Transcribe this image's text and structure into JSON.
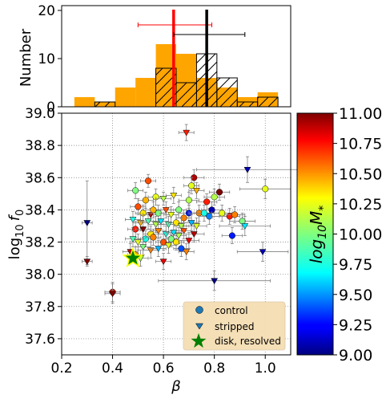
{
  "chart_data": [
    {
      "type": "histogram",
      "ylabel": "Number",
      "xlim": [
        0.2,
        1.1
      ],
      "ylim": [
        0,
        21
      ],
      "yticks": [
        0,
        10,
        20
      ],
      "series": [
        {
          "color": "#ffa500",
          "bins": [
            {
              "x0": 0.25,
              "x1": 0.33,
              "value": 2
            },
            {
              "x0": 0.33,
              "x1": 0.41,
              "value": 1
            },
            {
              "x0": 0.41,
              "x1": 0.49,
              "value": 4
            },
            {
              "x0": 0.49,
              "x1": 0.57,
              "value": 6
            },
            {
              "x0": 0.57,
              "x1": 0.65,
              "value": 13
            },
            {
              "x0": 0.65,
              "x1": 0.73,
              "value": 11
            },
            {
              "x0": 0.73,
              "x1": 0.81,
              "value": 6
            },
            {
              "x0": 0.81,
              "x1": 0.89,
              "value": 4
            },
            {
              "x0": 0.89,
              "x1": 0.97,
              "value": 2
            },
            {
              "x0": 0.97,
              "x1": 1.05,
              "value": 3
            }
          ]
        },
        {
          "color": "#000000",
          "hatch": true,
          "bins": [
            {
              "x0": 0.33,
              "x1": 0.41,
              "value": 1
            },
            {
              "x0": 0.57,
              "x1": 0.65,
              "value": 8
            },
            {
              "x0": 0.65,
              "x1": 0.73,
              "value": 5
            },
            {
              "x0": 0.73,
              "x1": 0.81,
              "value": 11
            },
            {
              "x0": 0.81,
              "x1": 0.89,
              "value": 6
            },
            {
              "x0": 0.89,
              "x1": 0.97,
              "value": 1
            },
            {
              "x0": 0.97,
              "x1": 1.05,
              "value": 2
            }
          ]
        }
      ],
      "markers": [
        {
          "color": "#ff0000",
          "x": 0.64,
          "xerr_low": 0.5,
          "xerr_high": 0.79,
          "y_err": 17
        },
        {
          "color": "#000000",
          "x": 0.77,
          "xerr_low": 0.64,
          "xerr_high": 0.92,
          "y_err": 15
        }
      ]
    },
    {
      "type": "scatter",
      "xlabel": "β",
      "ylabel_base": "log",
      "ylabel_sub": "10",
      "ylabel_var": "f",
      "ylabel_var_sub": "0",
      "xlim": [
        0.2,
        1.1
      ],
      "ylim": [
        37.5,
        39.0
      ],
      "xticks": [
        "0.2",
        "0.4",
        "0.6",
        "0.8",
        "1.0"
      ],
      "yticks": [
        "37.6",
        "37.8",
        "38.0",
        "38.2",
        "38.4",
        "38.6",
        "38.8",
        "39.0"
      ],
      "grid": true,
      "legend_position": "lower-right",
      "legend": [
        {
          "label": "control",
          "marker": "circle",
          "color": "#1f77b4"
        },
        {
          "label": "stripped",
          "marker": "triangle-down",
          "color": "#1f77b4"
        },
        {
          "label": "disk, resolved",
          "marker": "star",
          "color": "#008000"
        }
      ],
      "colorbar": {
        "label_base": "log",
        "label_sub": "10",
        "label_var": "M",
        "label_var_sub": "*",
        "range": [
          9.0,
          11.0
        ],
        "ticks": [
          "9.00",
          "9.25",
          "9.50",
          "9.75",
          "10.00",
          "10.25",
          "10.50",
          "10.75",
          "11.00"
        ]
      },
      "points": [
        {
          "x": 0.54,
          "y": 38.58,
          "c": 10.6,
          "m": "o",
          "ex": 0.03,
          "ey": 0.04
        },
        {
          "x": 0.72,
          "y": 38.6,
          "c": 10.9,
          "m": "o",
          "ex": 0.04,
          "ey": 0.05
        },
        {
          "x": 0.82,
          "y": 38.51,
          "c": 11.0,
          "m": "o",
          "ex": 0.04,
          "ey": 0.05
        },
        {
          "x": 1.0,
          "y": 38.53,
          "c": 10.2,
          "m": "o",
          "ex": 0.1,
          "ey": 0.06
        },
        {
          "x": 0.93,
          "y": 38.65,
          "c": 9.1,
          "m": "v",
          "ex": 0.2,
          "ey": 0.08
        },
        {
          "x": 0.69,
          "y": 38.88,
          "c": 10.7,
          "m": "v",
          "ex": 0.03,
          "ey": 0.05
        },
        {
          "x": 0.49,
          "y": 38.52,
          "c": 10.0,
          "m": "o",
          "ex": 0.03,
          "ey": 0.05
        },
        {
          "x": 0.53,
          "y": 38.46,
          "c": 10.4,
          "m": "o",
          "ex": 0.03,
          "ey": 0.05
        },
        {
          "x": 0.57,
          "y": 38.48,
          "c": 10.2,
          "m": "o",
          "ex": 0.03,
          "ey": 0.05
        },
        {
          "x": 0.6,
          "y": 38.47,
          "c": 10.1,
          "m": "v",
          "ex": 0.03,
          "ey": 0.04
        },
        {
          "x": 0.64,
          "y": 38.49,
          "c": 10.3,
          "m": "v",
          "ex": 0.03,
          "ey": 0.05
        },
        {
          "x": 0.7,
          "y": 38.46,
          "c": 10.1,
          "m": "o",
          "ex": 0.04,
          "ey": 0.05
        },
        {
          "x": 0.71,
          "y": 38.55,
          "c": 10.2,
          "m": "o",
          "ex": 0.03,
          "ey": 0.05
        },
        {
          "x": 0.73,
          "y": 38.52,
          "c": 10.4,
          "m": "v",
          "ex": 0.03,
          "ey": 0.05
        },
        {
          "x": 0.77,
          "y": 38.45,
          "c": 10.7,
          "m": "o",
          "ex": 0.04,
          "ey": 0.05
        },
        {
          "x": 0.8,
          "y": 38.48,
          "c": 10.1,
          "m": "o",
          "ex": 0.04,
          "ey": 0.05
        },
        {
          "x": 0.5,
          "y": 38.42,
          "c": 10.6,
          "m": "o",
          "ex": 0.03,
          "ey": 0.05
        },
        {
          "x": 0.52,
          "y": 38.38,
          "c": 10.3,
          "m": "o",
          "ex": 0.03,
          "ey": 0.05
        },
        {
          "x": 0.55,
          "y": 38.37,
          "c": 10.9,
          "m": "v",
          "ex": 0.03,
          "ey": 0.04
        },
        {
          "x": 0.56,
          "y": 38.4,
          "c": 10.4,
          "m": "o",
          "ex": 0.03,
          "ey": 0.05
        },
        {
          "x": 0.58,
          "y": 38.38,
          "c": 10.0,
          "m": "o",
          "ex": 0.03,
          "ey": 0.05
        },
        {
          "x": 0.61,
          "y": 38.4,
          "c": 10.6,
          "m": "v",
          "ex": 0.03,
          "ey": 0.05
        },
        {
          "x": 0.63,
          "y": 38.37,
          "c": 10.2,
          "m": "v",
          "ex": 0.03,
          "ey": 0.05
        },
        {
          "x": 0.66,
          "y": 38.4,
          "c": 10.0,
          "m": "o",
          "ex": 0.03,
          "ey": 0.05
        },
        {
          "x": 0.68,
          "y": 38.35,
          "c": 10.5,
          "m": "o",
          "ex": 0.03,
          "ey": 0.05
        },
        {
          "x": 0.7,
          "y": 38.38,
          "c": 9.3,
          "m": "o",
          "ex": 0.04,
          "ey": 0.05
        },
        {
          "x": 0.74,
          "y": 38.38,
          "c": 10.5,
          "m": "o",
          "ex": 0.04,
          "ey": 0.05
        },
        {
          "x": 0.76,
          "y": 38.38,
          "c": 9.8,
          "m": "o",
          "ex": 0.04,
          "ey": 0.05
        },
        {
          "x": 0.78,
          "y": 38.36,
          "c": 9.5,
          "m": "o",
          "ex": 0.04,
          "ey": 0.05
        },
        {
          "x": 0.79,
          "y": 38.4,
          "c": 9.1,
          "m": "o",
          "ex": 0.04,
          "ey": 0.05
        },
        {
          "x": 0.83,
          "y": 38.38,
          "c": 10.2,
          "m": "o",
          "ex": 0.04,
          "ey": 0.05
        },
        {
          "x": 0.86,
          "y": 38.36,
          "c": 10.7,
          "m": "o",
          "ex": 0.04,
          "ey": 0.05
        },
        {
          "x": 0.88,
          "y": 38.37,
          "c": 10.5,
          "m": "o",
          "ex": 0.04,
          "ey": 0.05
        },
        {
          "x": 0.91,
          "y": 38.33,
          "c": 10.0,
          "m": "o",
          "ex": 0.05,
          "ey": 0.05
        },
        {
          "x": 0.48,
          "y": 38.34,
          "c": 9.8,
          "m": "v",
          "ex": 0.03,
          "ey": 0.05
        },
        {
          "x": 0.51,
          "y": 38.32,
          "c": 10.4,
          "m": "v",
          "ex": 0.03,
          "ey": 0.05
        },
        {
          "x": 0.54,
          "y": 38.33,
          "c": 9.9,
          "m": "v",
          "ex": 0.03,
          "ey": 0.05
        },
        {
          "x": 0.57,
          "y": 38.31,
          "c": 10.1,
          "m": "v",
          "ex": 0.03,
          "ey": 0.05
        },
        {
          "x": 0.59,
          "y": 38.33,
          "c": 9.7,
          "m": "v",
          "ex": 0.03,
          "ey": 0.05
        },
        {
          "x": 0.62,
          "y": 38.31,
          "c": 9.9,
          "m": "v",
          "ex": 0.03,
          "ey": 0.05
        },
        {
          "x": 0.65,
          "y": 38.32,
          "c": 10.3,
          "m": "o",
          "ex": 0.03,
          "ey": 0.05
        },
        {
          "x": 0.67,
          "y": 38.3,
          "c": 10.1,
          "m": "v",
          "ex": 0.03,
          "ey": 0.05
        },
        {
          "x": 0.71,
          "y": 38.32,
          "c": 9.6,
          "m": "v",
          "ex": 0.03,
          "ey": 0.05
        },
        {
          "x": 0.73,
          "y": 38.3,
          "c": 10.2,
          "m": "v",
          "ex": 0.04,
          "ey": 0.05
        },
        {
          "x": 0.92,
          "y": 38.3,
          "c": 9.7,
          "m": "v",
          "ex": 0.1,
          "ey": 0.06
        },
        {
          "x": 0.49,
          "y": 38.28,
          "c": 10.7,
          "m": "o",
          "ex": 0.03,
          "ey": 0.05
        },
        {
          "x": 0.52,
          "y": 38.28,
          "c": 11.0,
          "m": "v",
          "ex": 0.03,
          "ey": 0.05
        },
        {
          "x": 0.55,
          "y": 38.25,
          "c": 10.3,
          "m": "o",
          "ex": 0.03,
          "ey": 0.05
        },
        {
          "x": 0.58,
          "y": 38.27,
          "c": 10.5,
          "m": "v",
          "ex": 0.03,
          "ey": 0.05
        },
        {
          "x": 0.61,
          "y": 38.25,
          "c": 9.8,
          "m": "v",
          "ex": 0.03,
          "ey": 0.05
        },
        {
          "x": 0.64,
          "y": 38.26,
          "c": 9.7,
          "m": "v",
          "ex": 0.03,
          "ey": 0.05
        },
        {
          "x": 0.66,
          "y": 38.24,
          "c": 10.1,
          "m": "v",
          "ex": 0.03,
          "ey": 0.05
        },
        {
          "x": 0.68,
          "y": 38.27,
          "c": 10.6,
          "m": "v",
          "ex": 0.03,
          "ey": 0.05
        },
        {
          "x": 0.72,
          "y": 38.25,
          "c": 10.9,
          "m": "v",
          "ex": 0.04,
          "ey": 0.05
        },
        {
          "x": 0.87,
          "y": 38.24,
          "c": 9.3,
          "m": "o",
          "ex": 0.04,
          "ey": 0.05
        },
        {
          "x": 0.48,
          "y": 38.22,
          "c": 9.9,
          "m": "v",
          "ex": 0.03,
          "ey": 0.05
        },
        {
          "x": 0.5,
          "y": 38.2,
          "c": 10.2,
          "m": "v",
          "ex": 0.03,
          "ey": 0.05
        },
        {
          "x": 0.53,
          "y": 38.22,
          "c": 9.8,
          "m": "o",
          "ex": 0.03,
          "ey": 0.05
        },
        {
          "x": 0.56,
          "y": 38.23,
          "c": 10.5,
          "m": "o",
          "ex": 0.03,
          "ey": 0.05
        },
        {
          "x": 0.6,
          "y": 38.2,
          "c": 10.6,
          "m": "o",
          "ex": 0.03,
          "ey": 0.05
        },
        {
          "x": 0.63,
          "y": 38.22,
          "c": 10.0,
          "m": "o",
          "ex": 0.03,
          "ey": 0.05
        },
        {
          "x": 0.65,
          "y": 38.2,
          "c": 10.3,
          "m": "o",
          "ex": 0.03,
          "ey": 0.05
        },
        {
          "x": 0.7,
          "y": 38.21,
          "c": 10.8,
          "m": "v",
          "ex": 0.04,
          "ey": 0.05
        },
        {
          "x": 0.52,
          "y": 38.17,
          "c": 10.0,
          "m": "v",
          "ex": 0.03,
          "ey": 0.05
        },
        {
          "x": 0.55,
          "y": 38.15,
          "c": 10.5,
          "m": "v",
          "ex": 0.03,
          "ey": 0.05
        },
        {
          "x": 0.58,
          "y": 38.16,
          "c": 9.6,
          "m": "v",
          "ex": 0.03,
          "ey": 0.05
        },
        {
          "x": 0.62,
          "y": 38.18,
          "c": 10.2,
          "m": "v",
          "ex": 0.03,
          "ey": 0.05
        },
        {
          "x": 0.67,
          "y": 38.16,
          "c": 9.4,
          "m": "o",
          "ex": 0.03,
          "ey": 0.05
        },
        {
          "x": 0.69,
          "y": 38.14,
          "c": 10.5,
          "m": "v",
          "ex": 0.03,
          "ey": 0.05
        },
        {
          "x": 0.47,
          "y": 38.14,
          "c": 10.9,
          "m": "v",
          "ex": 0.03,
          "ey": 0.05
        },
        {
          "x": 0.49,
          "y": 38.12,
          "c": 10.4,
          "m": "o",
          "ex": 0.03,
          "ey": 0.05
        },
        {
          "x": 0.51,
          "y": 38.1,
          "c": 10.1,
          "m": "v",
          "ex": 0.03,
          "ey": 0.05
        },
        {
          "x": 0.6,
          "y": 38.08,
          "c": 10.8,
          "m": "v",
          "ex": 0.03,
          "ey": 0.05
        },
        {
          "x": 0.99,
          "y": 38.14,
          "c": 9.1,
          "m": "v",
          "ex": 0.1,
          "ey": 0.06
        },
        {
          "x": 0.3,
          "y": 38.32,
          "c": 9.0,
          "m": "v",
          "ex": 0.02,
          "ey": 0.26
        },
        {
          "x": 0.3,
          "y": 38.08,
          "c": 11.0,
          "m": "v",
          "ex": 0.02,
          "ey": 0.03
        },
        {
          "x": 0.4,
          "y": 37.89,
          "c": 10.7,
          "m": "o",
          "ex": 0.03,
          "ey": 0.06
        },
        {
          "x": 0.4,
          "y": 37.88,
          "c": 11.0,
          "m": "v",
          "ex": 0.03,
          "ey": 0.06
        },
        {
          "x": 0.8,
          "y": 37.96,
          "c": 9.0,
          "m": "v",
          "ex": 0.22,
          "ey": 0.06
        }
      ],
      "highlight": {
        "x": 0.48,
        "y": 38.1
      }
    }
  ]
}
